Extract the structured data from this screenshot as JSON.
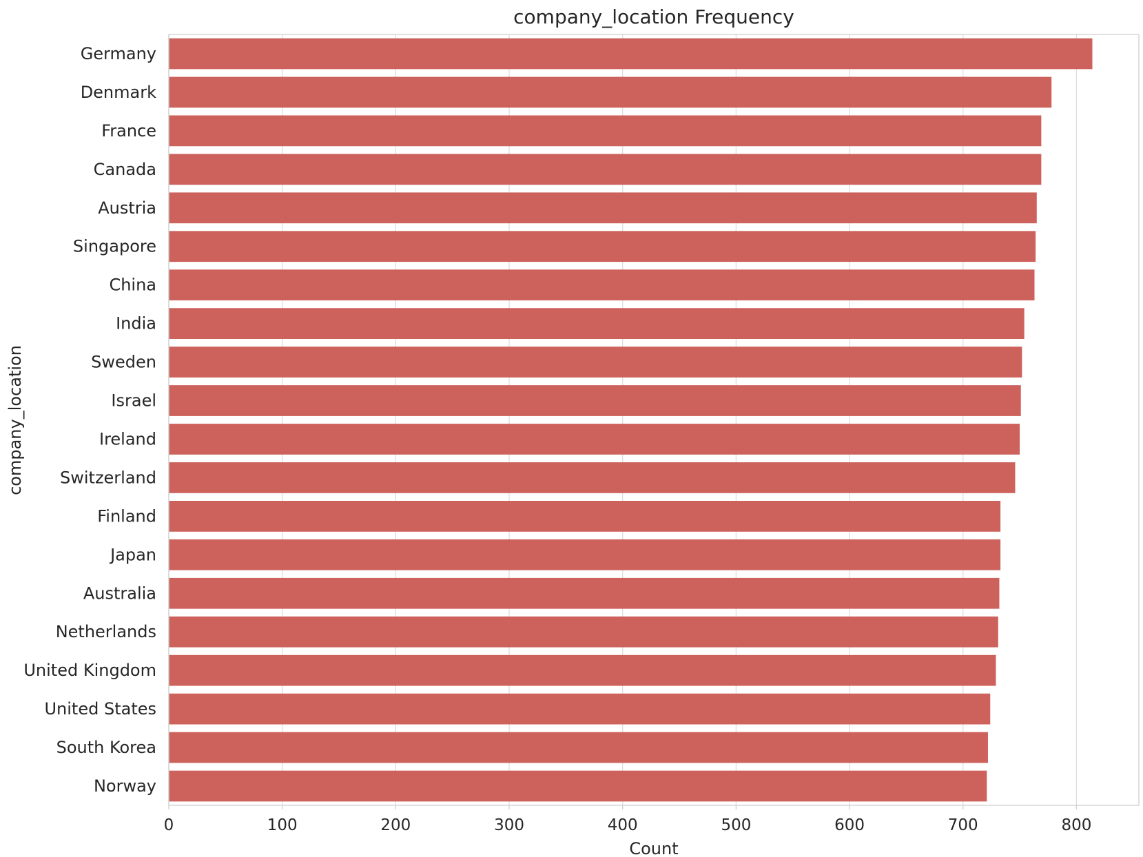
{
  "chart_data": {
    "type": "bar",
    "orientation": "horizontal",
    "title": "company_location Frequency",
    "xlabel": "Count",
    "ylabel": "company_location",
    "xlim": [
      0,
      855
    ],
    "xticks": [
      0,
      100,
      200,
      300,
      400,
      500,
      600,
      700,
      800
    ],
    "grid": true,
    "bar_color": "#cd625c",
    "categories": [
      "Germany",
      "Denmark",
      "France",
      "Canada",
      "Austria",
      "Singapore",
      "China",
      "India",
      "Sweden",
      "Israel",
      "Ireland",
      "Switzerland",
      "Finland",
      "Japan",
      "Australia",
      "Netherlands",
      "United Kingdom",
      "United States",
      "South Korea",
      "Norway"
    ],
    "values": [
      814,
      778,
      769,
      769,
      765,
      764,
      763,
      754,
      752,
      751,
      750,
      746,
      733,
      733,
      732,
      731,
      729,
      724,
      722,
      721
    ]
  }
}
